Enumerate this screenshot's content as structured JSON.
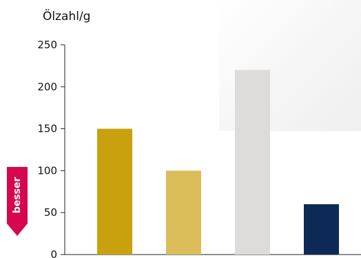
{
  "chart_data": {
    "type": "bar",
    "title": "",
    "ylabel": "Ölzahl/g",
    "xlabel": "",
    "categories": [
      "",
      "",
      "",
      ""
    ],
    "values": [
      150,
      100,
      220,
      60
    ],
    "bar_colors": [
      "#c9a10e",
      "#dbbd5a",
      "#dddcda",
      "#0d2a57"
    ],
    "ylim": [
      0,
      250
    ],
    "yticks": [
      0,
      50,
      100,
      150,
      200,
      250
    ],
    "grid": false,
    "legend": "none"
  },
  "badge": {
    "label": "besser",
    "color": "#d6064f"
  }
}
